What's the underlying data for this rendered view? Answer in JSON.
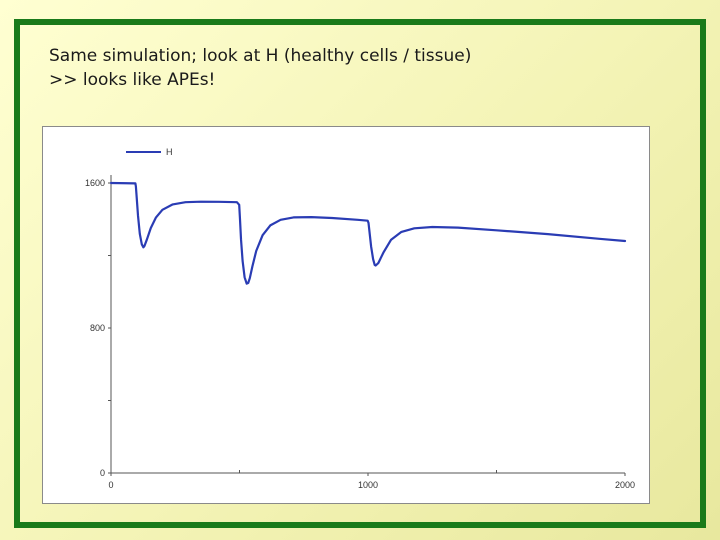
{
  "slide": {
    "caption_line1": "Same simulation; look at H (healthy cells / tissue)",
    "caption_line2": ">> looks like APEs!",
    "frame_color": "#1a7a1a"
  },
  "chart_data": {
    "type": "line",
    "title": "",
    "xlabel": "",
    "ylabel": "",
    "xlim": [
      0,
      2000
    ],
    "ylim": [
      0,
      1600
    ],
    "grid": false,
    "legend_position": "top-left",
    "x_ticks": [
      0,
      1000,
      2000
    ],
    "x_tick_labels": [
      "0",
      "1000",
      "2000"
    ],
    "y_ticks": [
      0,
      800,
      1600
    ],
    "y_tick_labels": [
      "0",
      "800",
      "1600"
    ],
    "series": [
      {
        "name": "H",
        "color": "#2a3cb4",
        "x": [
          0,
          95,
          97,
          100,
          105,
          112,
          120,
          126,
          130,
          140,
          155,
          175,
          200,
          240,
          290,
          350,
          420,
          490,
          499,
          502,
          506,
          512,
          520,
          528,
          534,
          540,
          550,
          565,
          590,
          620,
          660,
          710,
          780,
          860,
          960,
          999,
          1002,
          1006,
          1012,
          1020,
          1026,
          1030,
          1040,
          1060,
          1090,
          1130,
          1180,
          1250,
          1350,
          1500,
          1700,
          1900,
          2000
        ],
        "y": [
          1600,
          1598,
          1580,
          1520,
          1420,
          1320,
          1262,
          1245,
          1252,
          1290,
          1352,
          1410,
          1452,
          1482,
          1494,
          1497,
          1496,
          1494,
          1480,
          1400,
          1290,
          1170,
          1080,
          1045,
          1048,
          1075,
          1140,
          1225,
          1312,
          1366,
          1397,
          1410,
          1412,
          1407,
          1397,
          1392,
          1380,
          1330,
          1250,
          1180,
          1148,
          1145,
          1158,
          1216,
          1287,
          1330,
          1350,
          1357,
          1354,
          1339,
          1318,
          1292,
          1280
        ]
      }
    ]
  }
}
